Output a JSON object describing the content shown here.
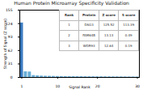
{
  "chart_data": {
    "type": "bar",
    "title": "Human Protein Microarray Specificity Validation",
    "xlabel": "Signal Rank",
    "ylabel": "Strength of Signal (Z score)",
    "x": [
      1,
      2,
      3,
      4,
      5,
      6,
      7,
      8,
      9,
      10,
      11,
      12,
      13,
      14,
      15,
      16,
      17,
      18,
      19,
      20,
      21,
      22,
      23,
      24,
      25,
      26,
      27,
      28,
      29,
      30
    ],
    "values": [
      125.52,
      13.13,
      12.64,
      4.5,
      3.8,
      3.2,
      2.9,
      2.7,
      2.5,
      2.3,
      2.1,
      2.0,
      1.9,
      1.85,
      1.8,
      1.75,
      1.7,
      1.65,
      1.6,
      1.55,
      1.5,
      1.45,
      1.4,
      1.35,
      1.3,
      1.25,
      1.2,
      1.15,
      1.1,
      1.05
    ],
    "colors": [
      "#3a7abf",
      "#6aaed6",
      "#6aaed6",
      "#6aaed6",
      "#6aaed6",
      "#6aaed6",
      "#6aaed6",
      "#6aaed6",
      "#6aaed6",
      "#6aaed6",
      "#6aaed6",
      "#6aaed6",
      "#6aaed6",
      "#6aaed6",
      "#6aaed6",
      "#6aaed6",
      "#6aaed6",
      "#6aaed6",
      "#6aaed6",
      "#6aaed6",
      "#6aaed6",
      "#6aaed6",
      "#6aaed6",
      "#6aaed6",
      "#6aaed6",
      "#6aaed6",
      "#6aaed6",
      "#6aaed6",
      "#6aaed6",
      "#6aaed6"
    ],
    "xlim": [
      0.5,
      30.5
    ],
    "xticks": [
      1,
      10,
      20,
      30
    ],
    "ylim": [
      0,
      155
    ],
    "yticks": [
      0,
      31,
      62,
      93,
      124,
      155
    ],
    "table": {
      "columns": [
        "Rank",
        "Protein",
        "Z score",
        "S score"
      ],
      "rows": [
        [
          "1",
          "DSG3",
          "125.52",
          "113.39"
        ],
        [
          "2",
          "FAM64B",
          "13.13",
          "0.49"
        ],
        [
          "3",
          "WDR93",
          "12.64",
          "0.19"
        ]
      ]
    }
  }
}
